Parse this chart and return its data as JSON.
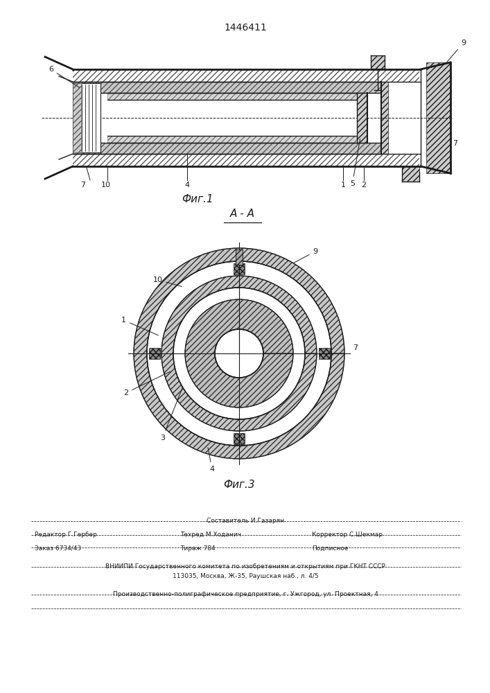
{
  "patent_number": "1446411",
  "fig1_caption": "Фиг.1",
  "fig3_caption": "Фиг.3",
  "section_label": "A - A",
  "line_color": "#1a1a1a",
  "footer": {
    "line1_center_top": "Составитель И.Газарян",
    "line1_left": "Редактор Г.Гербер",
    "line1_center": "Техред М.Ходанич",
    "line1_right": "Корректор С.Шекмар",
    "line2_left": "Заказ 6734/43",
    "line2_center": "Тираж 784",
    "line2_right": "Подписное",
    "line3": "ВНИИПИ Государственного комитета по изобретениям и открытиям при ГКНТ СССР",
    "line4": "113035, Москва, Ж-35, Раушская наб., л. 4/5",
    "line5": "Производственно-полиграфическое предприятие, г. Ужгород, ул. Проектная, 4"
  }
}
